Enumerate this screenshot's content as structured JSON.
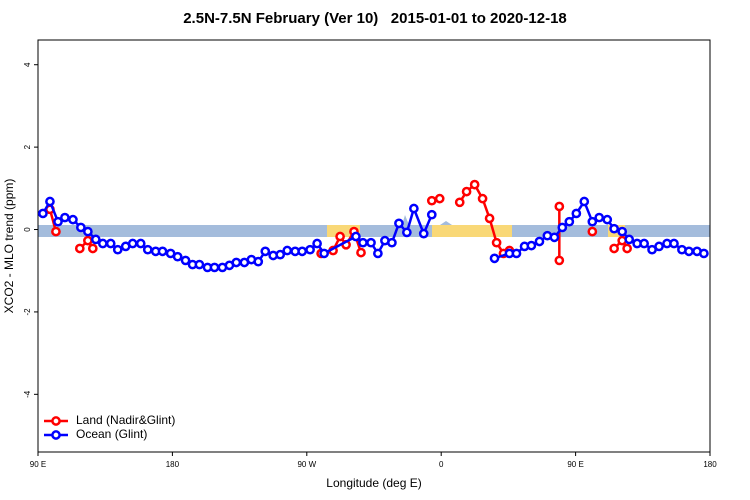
{
  "chart_data": {
    "type": "line",
    "title": "2.5N-7.5N February (Ver 10)   2015-01-01 to 2020-12-18",
    "x_label": "Longitude (deg E)",
    "y_label": "XCO2 - MLO trend (ppm)",
    "xlim": [
      90,
      540
    ],
    "ylim": [
      -5.4,
      4.6
    ],
    "xticks": [
      {
        "value": 90,
        "label": "90 E"
      },
      180,
      {
        "value": 270,
        "label": "90 W"
      },
      {
        "value": 360,
        "label": "0"
      },
      {
        "value": 450,
        "label": "90 E"
      },
      180
    ],
    "yticks": [
      -4,
      -2,
      0,
      2,
      4
    ],
    "legend": "bottom-left",
    "series": [
      {
        "name": "Land (Nadir&Glint)",
        "color": "#ff0000",
        "x": [
          98.0,
          102.0,
          null,
          118.0,
          123.4,
          126.7,
          null,
          279.6,
          287.6,
          292.3,
          296.3,
          301.6,
          306.3,
          null,
          353.7,
          359.0,
          null,
          372.4,
          377.0,
          382.4,
          387.7,
          392.4,
          397.1,
          401.7,
          405.7,
          null,
          439.1,
          439.1,
          null,
          461.2,
          null,
          475.8,
          481.2,
          484.5
        ],
        "values": [
          0.49,
          -0.05,
          null,
          -0.46,
          -0.27,
          -0.46,
          null,
          -0.58,
          -0.51,
          -0.17,
          -0.37,
          -0.05,
          -0.56,
          null,
          0.7,
          0.75,
          null,
          0.66,
          0.92,
          1.09,
          0.75,
          0.27,
          -0.32,
          -0.58,
          -0.51,
          null,
          0.56,
          -0.75,
          null,
          -0.05,
          null,
          -0.46,
          -0.27,
          -0.46
        ]
      },
      {
        "name": "Ocean (Glint)",
        "color": "#0000ff",
        "x": [
          93.3,
          98.0,
          103.4,
          108.0,
          113.4,
          118.7,
          123.4,
          128.7,
          133.4,
          138.7,
          143.4,
          148.7,
          153.4,
          158.8,
          163.5,
          168.8,
          173.4,
          178.8,
          183.5,
          188.8,
          193.5,
          198.1,
          203.5,
          208.2,
          213.5,
          218.2,
          222.8,
          228.2,
          232.9,
          237.5,
          242.2,
          247.5,
          252.2,
          256.9,
          262.2,
          266.9,
          272.2,
          276.9,
          281.6,
          302.9,
          307.6,
          313.0,
          317.6,
          322.3,
          327.0,
          331.7,
          337.0,
          341.7,
          348.3,
          353.7,
          null,
          395.7,
          405.7,
          410.4,
          415.8,
          420.4,
          425.8,
          431.1,
          435.8,
          441.1,
          445.8,
          450.5,
          455.8,
          461.2,
          465.8,
          471.2,
          475.8,
          481.2,
          485.9,
          491.2,
          495.9,
          501.2,
          505.9,
          511.2,
          515.9,
          521.2,
          525.9,
          531.3,
          535.9
        ],
        "values": [
          0.39,
          0.68,
          0.19,
          0.29,
          0.24,
          0.05,
          -0.05,
          -0.24,
          -0.34,
          -0.34,
          -0.49,
          -0.41,
          -0.34,
          -0.34,
          -0.49,
          -0.53,
          -0.53,
          -0.58,
          -0.66,
          -0.75,
          -0.85,
          -0.85,
          -0.92,
          -0.92,
          -0.92,
          -0.87,
          -0.8,
          -0.8,
          -0.73,
          -0.78,
          -0.53,
          -0.63,
          -0.61,
          -0.51,
          -0.53,
          -0.53,
          -0.49,
          -0.34,
          -0.58,
          -0.17,
          -0.32,
          -0.32,
          -0.58,
          -0.27,
          -0.32,
          0.15,
          -0.07,
          0.51,
          -0.1,
          0.36,
          null,
          -0.7,
          -0.58,
          -0.58,
          -0.41,
          -0.39,
          -0.29,
          -0.15,
          -0.19,
          0.05,
          0.19,
          0.39,
          0.68,
          0.19,
          0.29,
          0.24,
          0.02,
          -0.05,
          -0.24,
          -0.34,
          -0.34,
          -0.49,
          -0.41,
          -0.34,
          -0.34,
          -0.49,
          -0.53,
          -0.53,
          -0.58
        ]
      }
    ]
  }
}
